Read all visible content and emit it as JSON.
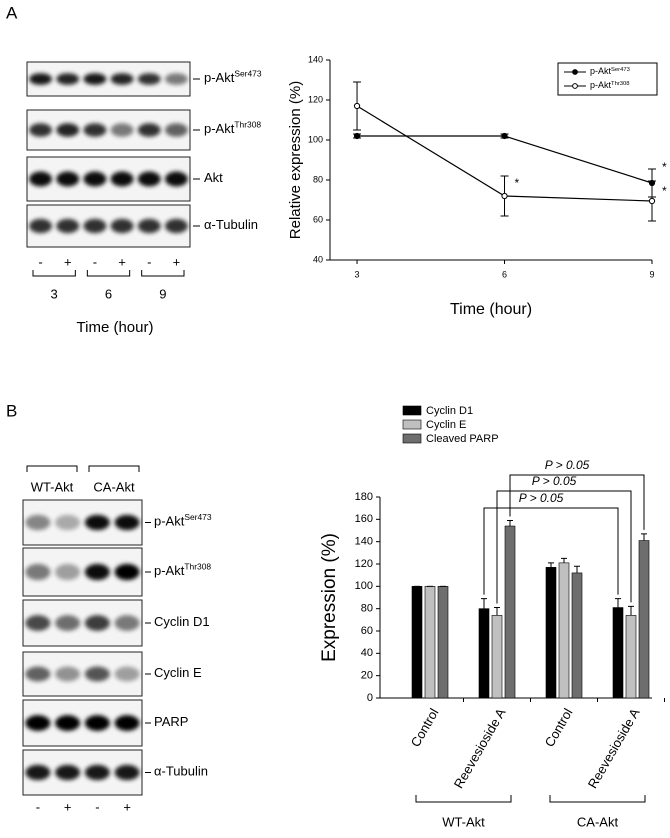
{
  "panel_labels": [
    "A",
    "B"
  ],
  "blot_a": {
    "rows": [
      {
        "label": "p-Akt",
        "sup": "Ser473"
      },
      {
        "label": "p-Akt",
        "sup": "Thr308"
      },
      {
        "label": "Akt"
      },
      {
        "label": "α-Tubulin"
      }
    ],
    "lanes": [
      "-",
      "+",
      "-",
      "+",
      "-",
      "+"
    ],
    "times": [
      "3",
      "6",
      "9"
    ],
    "xlabel": "Time (hour)"
  },
  "blot_b": {
    "groups": [
      "WT-Akt",
      "CA-Akt"
    ],
    "rows": [
      {
        "label": "p-Akt",
        "sup": "Ser473"
      },
      {
        "label": "p-Akt",
        "sup": "Thr308"
      },
      {
        "label": "Cyclin D1"
      },
      {
        "label": "Cyclin E"
      },
      {
        "label": "PARP"
      },
      {
        "label": "α-Tubulin"
      }
    ],
    "lanes": [
      "-",
      "+",
      "-",
      "+"
    ]
  },
  "chart_data": [
    {
      "type": "line",
      "x": [
        3,
        6,
        9
      ],
      "xlim": [
        2.45,
        9
      ],
      "xticks": [
        3,
        6,
        9
      ],
      "ylim": [
        40,
        140
      ],
      "yticks": [
        40,
        60,
        80,
        100,
        120,
        140
      ],
      "xlabel": "Time (hour)",
      "ylabel": "Relative expression (%)",
      "legend": "upper right",
      "series": [
        {
          "name": "p-Akt",
          "name_sup": "Ser473",
          "color": "#000000",
          "marker": "filled",
          "values": [
            102,
            102,
            78.5
          ],
          "errors": [
            1,
            1,
            7
          ]
        },
        {
          "name": "p-Akt",
          "name_sup": "Thr308",
          "color": "#000000",
          "marker": "open",
          "values": [
            117,
            72,
            69.5
          ],
          "errors": [
            12,
            10,
            10
          ]
        }
      ],
      "annotations": [
        "*",
        "*",
        "*"
      ]
    },
    {
      "type": "bar",
      "categories": [
        "Control",
        "Reevesioside A",
        "Control",
        "Reevesioside A"
      ],
      "groups": [
        "WT-Akt",
        "CA-Akt"
      ],
      "ylabel": "Expression (%)",
      "ylim": [
        0,
        180
      ],
      "yticks": [
        0,
        20,
        40,
        60,
        80,
        100,
        120,
        140,
        160,
        180
      ],
      "legend": "upper left",
      "series": [
        {
          "name": "Cyclin D1",
          "color": "#000000",
          "values": [
            100,
            80,
            117,
            81
          ],
          "errors": [
            0,
            9,
            4,
            8
          ]
        },
        {
          "name": "Cyclin E",
          "color": "#c0c0c0",
          "values": [
            100,
            74,
            121,
            74
          ],
          "errors": [
            0,
            7,
            4,
            8
          ]
        },
        {
          "name": "Cleaved PARP",
          "color": "#6e6e6e",
          "values": [
            100,
            154,
            112,
            141
          ],
          "errors": [
            0,
            5,
            6,
            6
          ]
        }
      ],
      "annotations": [
        "P > 0.05",
        "P > 0.05",
        "P > 0.05"
      ]
    }
  ]
}
